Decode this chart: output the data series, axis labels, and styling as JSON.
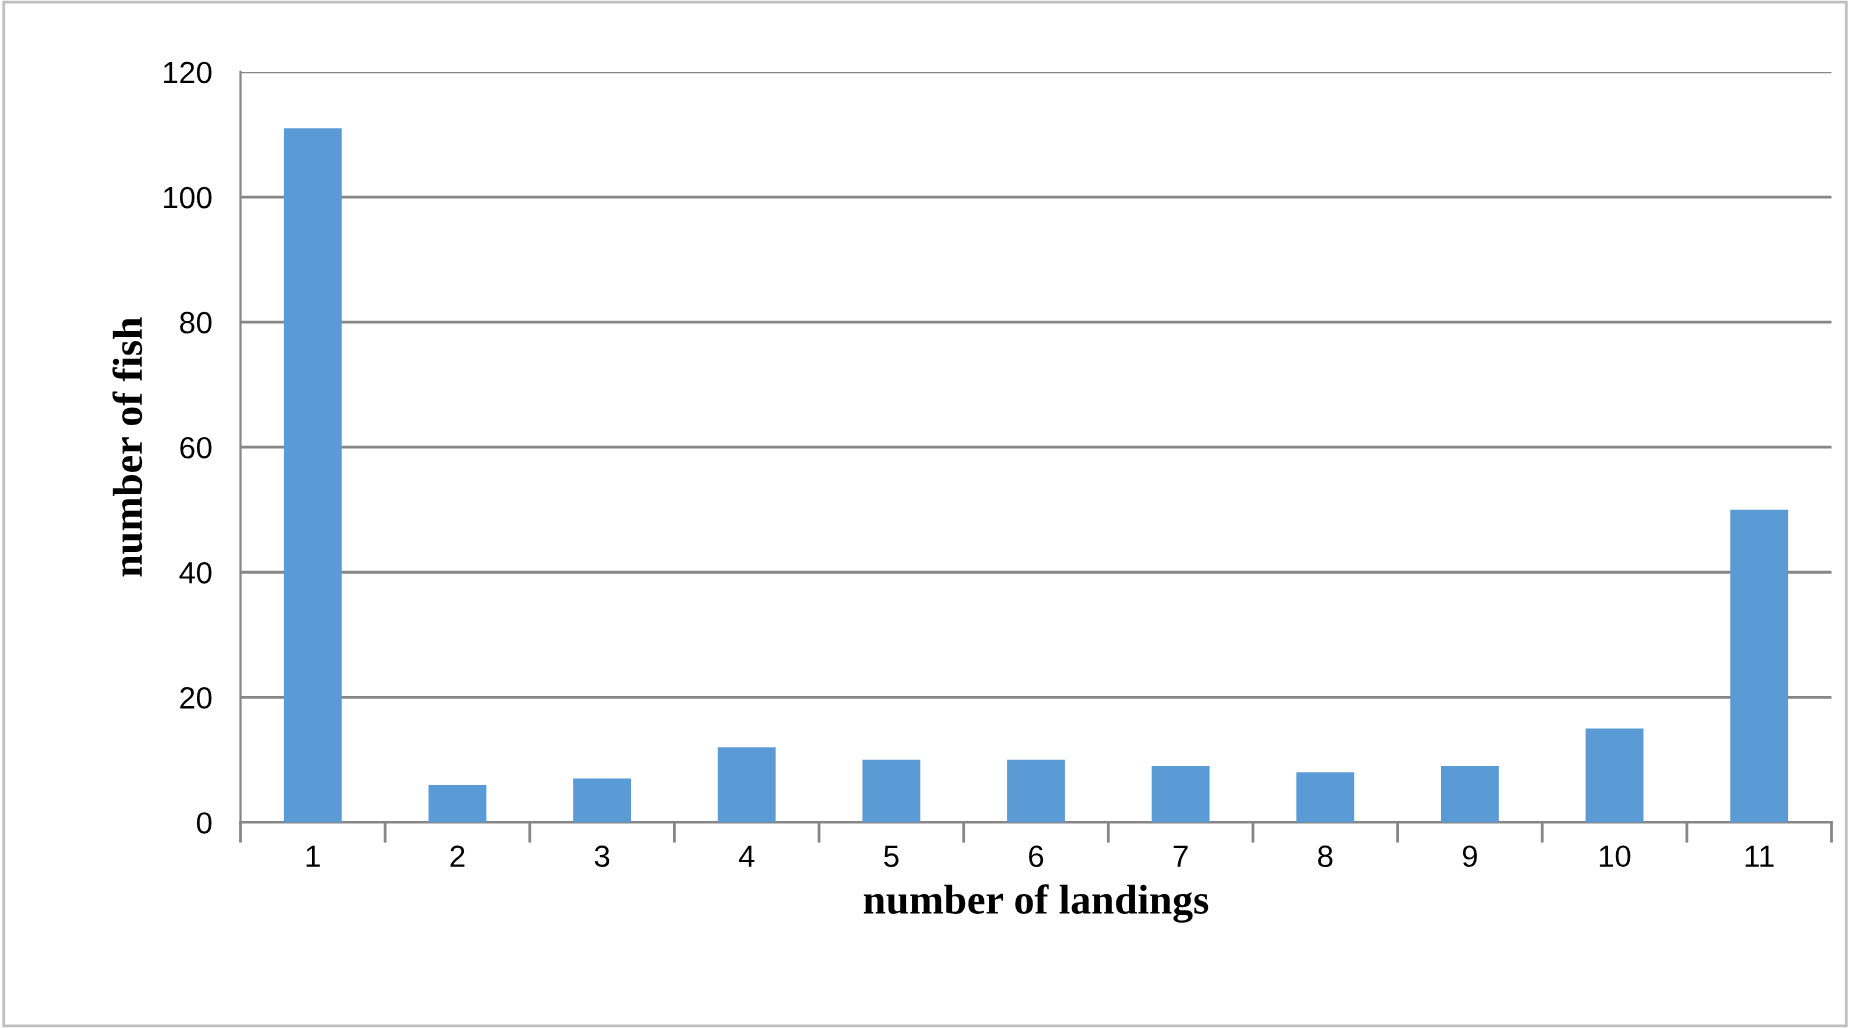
{
  "chart_data": {
    "type": "bar",
    "xlabel": "number of landings",
    "ylabel": "number of fish",
    "categories": [
      "1",
      "2",
      "3",
      "4",
      "5",
      "6",
      "7",
      "8",
      "9",
      "10",
      "11"
    ],
    "values": [
      111,
      6,
      7,
      12,
      10,
      10,
      9,
      8,
      9,
      15,
      50
    ],
    "color": "#5b9bd5",
    "ylim": [
      0,
      120
    ],
    "yticks": [
      0,
      20,
      40,
      60,
      80,
      100,
      120
    ],
    "grid": "y",
    "legend": false
  }
}
